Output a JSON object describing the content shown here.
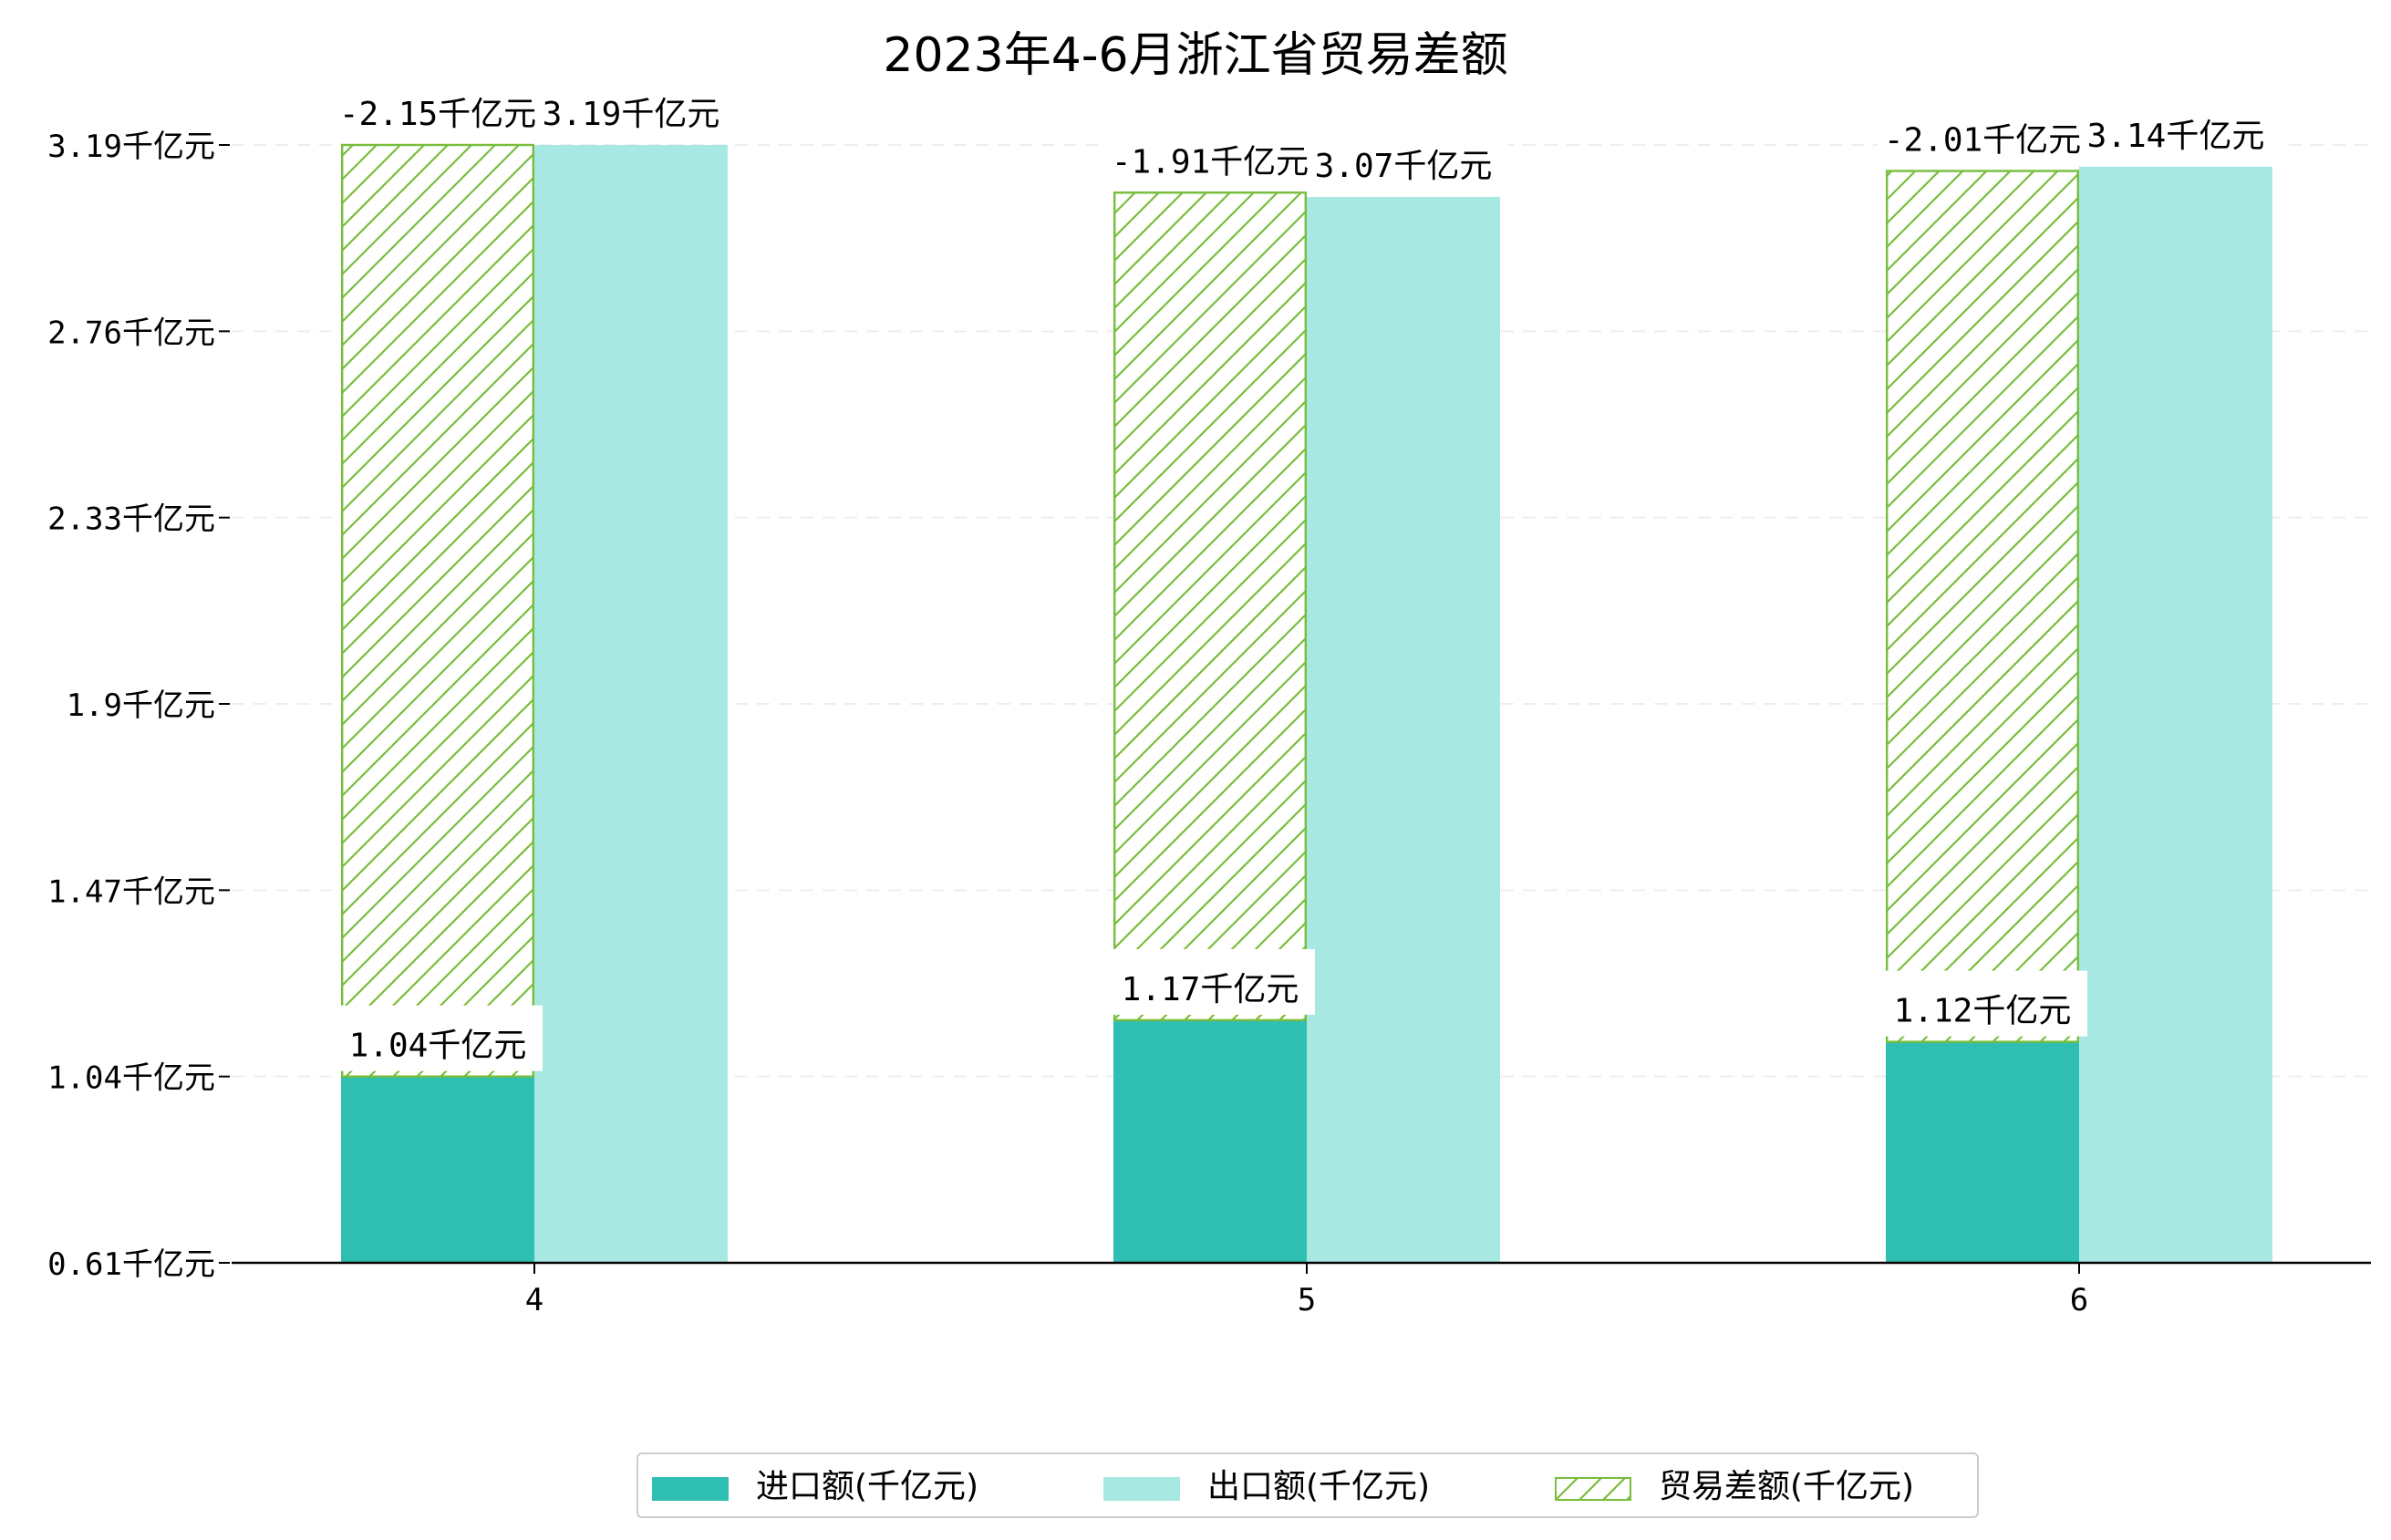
{
  "chart_data": {
    "type": "bar",
    "title": "2023年4-6月浙江省贸易差额",
    "categories": [
      "4",
      "5",
      "6"
    ],
    "unit": "千亿元",
    "ylim": [
      0.61,
      3.19
    ],
    "yticks": [
      "0.61千亿元",
      "1.04千亿元",
      "1.47千亿元",
      "1.9千亿元",
      "2.33千亿元",
      "2.76千亿元",
      "3.19千亿元"
    ],
    "ytick_values": [
      0.61,
      1.04,
      1.47,
      1.9,
      2.33,
      2.76,
      3.19
    ],
    "grid": "horizontal dashed",
    "legend_position": "bottom-center",
    "series": [
      {
        "name": "进口额(千亿元)",
        "color": "#2ebfb2",
        "values": [
          1.04,
          1.17,
          1.12
        ],
        "labels": [
          "1.04千亿元",
          "1.17千亿元",
          "1.12千亿元"
        ]
      },
      {
        "name": "出口额(千亿元)",
        "color": "#a8e8e2",
        "values": [
          3.19,
          3.07,
          3.14
        ],
        "labels": [
          "3.19千亿元",
          "3.07千亿元",
          "3.14千亿元"
        ]
      },
      {
        "name": "贸易差额(千亿元)",
        "color": "#78bd3c",
        "fill": "hatch",
        "values": [
          -2.15,
          -1.91,
          -2.01
        ],
        "labels": [
          "-2.15千亿元",
          "-1.91千亿元",
          "-2.01千亿元"
        ]
      }
    ]
  }
}
